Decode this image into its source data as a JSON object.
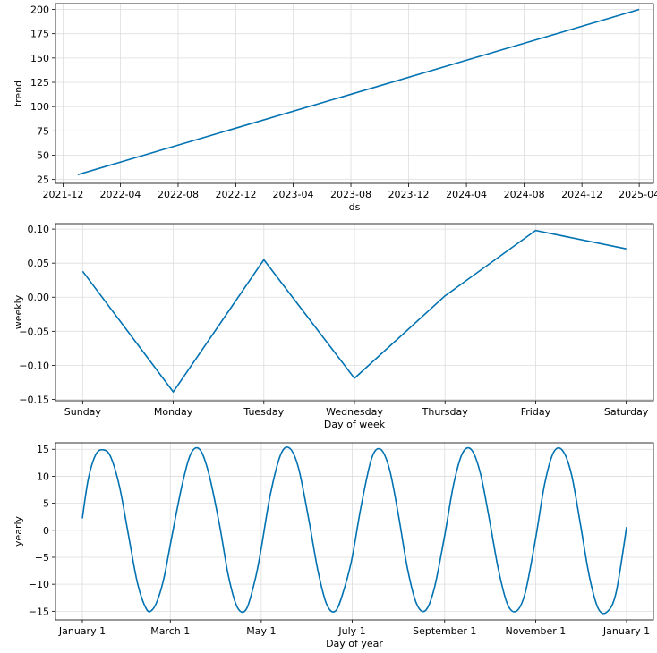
{
  "chart_data": [
    {
      "type": "line",
      "xlabel": "ds",
      "ylabel": "trend",
      "x_type": "date",
      "x_ticks": [
        "2021-12",
        "2022-04",
        "2022-08",
        "2022-12",
        "2023-04",
        "2023-08",
        "2023-12",
        "2024-04",
        "2024-08",
        "2024-12",
        "2025-04"
      ],
      "xlim": [
        "2021-11-15",
        "2025-05-01"
      ],
      "y_ticks": [
        25,
        50,
        75,
        100,
        125,
        150,
        175,
        200
      ],
      "ylim": [
        21,
        206
      ],
      "grid": true,
      "series": [
        {
          "x": [
            "2022-01-01",
            "2025-04-01"
          ],
          "y": [
            30,
            200
          ],
          "color": "#0072B2"
        }
      ]
    },
    {
      "type": "line",
      "xlabel": "Day of week",
      "ylabel": "weekly",
      "x_type": "category",
      "categories": [
        "Sunday",
        "Monday",
        "Tuesday",
        "Wednesday",
        "Thursday",
        "Friday",
        "Saturday"
      ],
      "y_ticks": [
        -0.15,
        -0.1,
        -0.05,
        0.0,
        0.05,
        0.1
      ],
      "y_tick_labels": [
        "−0.15",
        "−0.10",
        "−0.05",
        "0.00",
        "0.05",
        "0.10"
      ],
      "ylim": [
        -0.152,
        0.108
      ],
      "grid": true,
      "series": [
        {
          "values": [
            0.038,
            -0.139,
            0.055,
            -0.119,
            0.002,
            0.098,
            0.071
          ],
          "color": "#0072B2"
        }
      ]
    },
    {
      "type": "line",
      "xlabel": "Day of year",
      "ylabel": "yearly",
      "x_type": "day_of_year",
      "x_ticks": [
        0,
        59,
        120,
        181,
        243,
        304,
        365
      ],
      "x_tick_labels": [
        "January 1",
        "March 1",
        "May 1",
        "July 1",
        "September 1",
        "November 1",
        "January 1"
      ],
      "xlim": [
        -18,
        383
      ],
      "y_ticks": [
        -15,
        -10,
        -5,
        0,
        5,
        10,
        15
      ],
      "y_tick_labels": [
        "−15",
        "−10",
        "−5",
        "0",
        "5",
        "10",
        "15"
      ],
      "ylim": [
        -16.6,
        16.2
      ],
      "grid": true,
      "series": [
        {
          "x": [
            0,
            4,
            9,
            14,
            19,
            25,
            31,
            37,
            43,
            47,
            51,
            55,
            60,
            67,
            73,
            79,
            85,
            92,
            98,
            104,
            110,
            116,
            120,
            126,
            133,
            139,
            145,
            152,
            158,
            164,
            170,
            176,
            181,
            187,
            194,
            200,
            206,
            212,
            218,
            224,
            230,
            236,
            243,
            249,
            255,
            261,
            267,
            273,
            279,
            285,
            291,
            297,
            304,
            310,
            316,
            322,
            328,
            334,
            340,
            346,
            352,
            358,
            365
          ],
          "y": [
            2.2,
            9.5,
            14.0,
            14.9,
            13.6,
            8.0,
            -1.0,
            -9.8,
            -14.6,
            -14.7,
            -12.5,
            -8.5,
            -1.2,
            8.5,
            14.3,
            14.9,
            10.3,
            1.0,
            -8.5,
            -14.3,
            -14.6,
            -9.0,
            -3.3,
            6.5,
            14.0,
            15.2,
            11.5,
            1.8,
            -7.5,
            -13.8,
            -14.9,
            -10.5,
            -5.0,
            4.5,
            13.3,
            15.0,
            11.3,
            2.8,
            -7.0,
            -13.5,
            -14.9,
            -10.8,
            -1.0,
            8.5,
            14.3,
            14.9,
            10.5,
            2.0,
            -7.2,
            -13.6,
            -15.0,
            -11.6,
            -1.5,
            8.5,
            14.4,
            14.8,
            10.4,
            1.2,
            -8.5,
            -14.5,
            -15.1,
            -11.5,
            0.6
          ],
          "color": "#0072B2"
        }
      ]
    }
  ]
}
